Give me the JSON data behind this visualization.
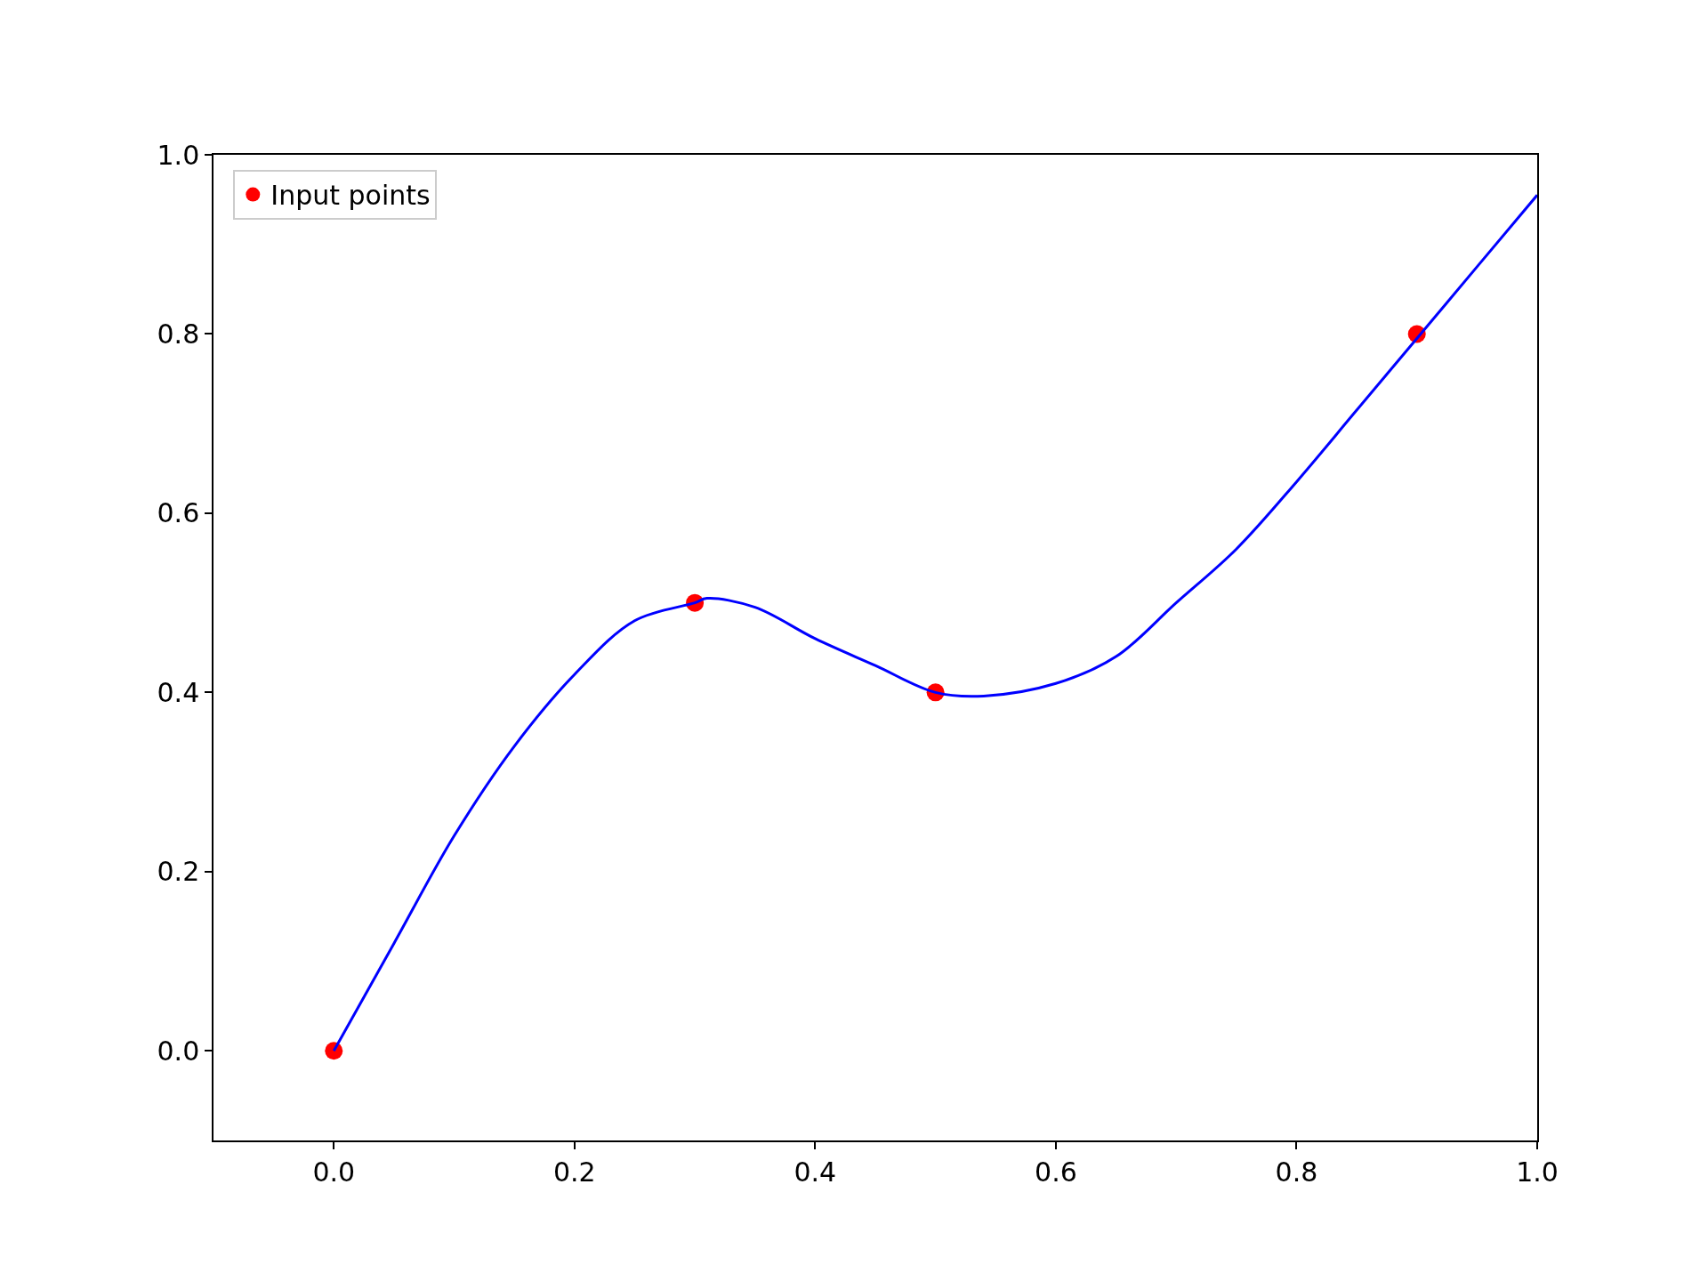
{
  "chart_data": {
    "type": "scatter",
    "x": [
      0.0,
      0.3,
      0.5,
      0.9
    ],
    "series": [
      {
        "name": "Input points",
        "color": "#ff0000",
        "marker": "circle",
        "values": [
          0.0,
          0.5,
          0.4,
          0.8
        ]
      },
      {
        "type": "line",
        "color": "#0000ff",
        "marker": "none",
        "x": [
          0.0,
          0.05,
          0.1,
          0.15,
          0.2,
          0.25,
          0.3,
          0.31,
          0.35,
          0.4,
          0.45,
          0.5,
          0.54,
          0.6,
          0.65,
          0.7,
          0.75,
          0.8,
          0.85,
          0.9,
          0.95,
          1.0
        ],
        "values": [
          0.0,
          0.12,
          0.24,
          0.34,
          0.42,
          0.48,
          0.5,
          0.505,
          0.495,
          0.46,
          0.43,
          0.4,
          0.396,
          0.41,
          0.44,
          0.5,
          0.56,
          0.635,
          0.715,
          0.795,
          0.875,
          0.955
        ]
      }
    ],
    "xlim": [
      -0.1,
      1.0
    ],
    "ylim": [
      -0.1,
      1.0
    ],
    "xticks": [
      {
        "value": 0,
        "label": "0.0"
      },
      0.2,
      0.4,
      0.6,
      0.8,
      {
        "value": 1,
        "label": "1.0"
      }
    ],
    "yticks": [
      {
        "value": 0,
        "label": "0.0"
      },
      0.2,
      0.4,
      0.6,
      0.8,
      {
        "value": 1,
        "label": "1.0"
      }
    ],
    "grid": false,
    "legend": "top left",
    "line_style": "solid"
  }
}
